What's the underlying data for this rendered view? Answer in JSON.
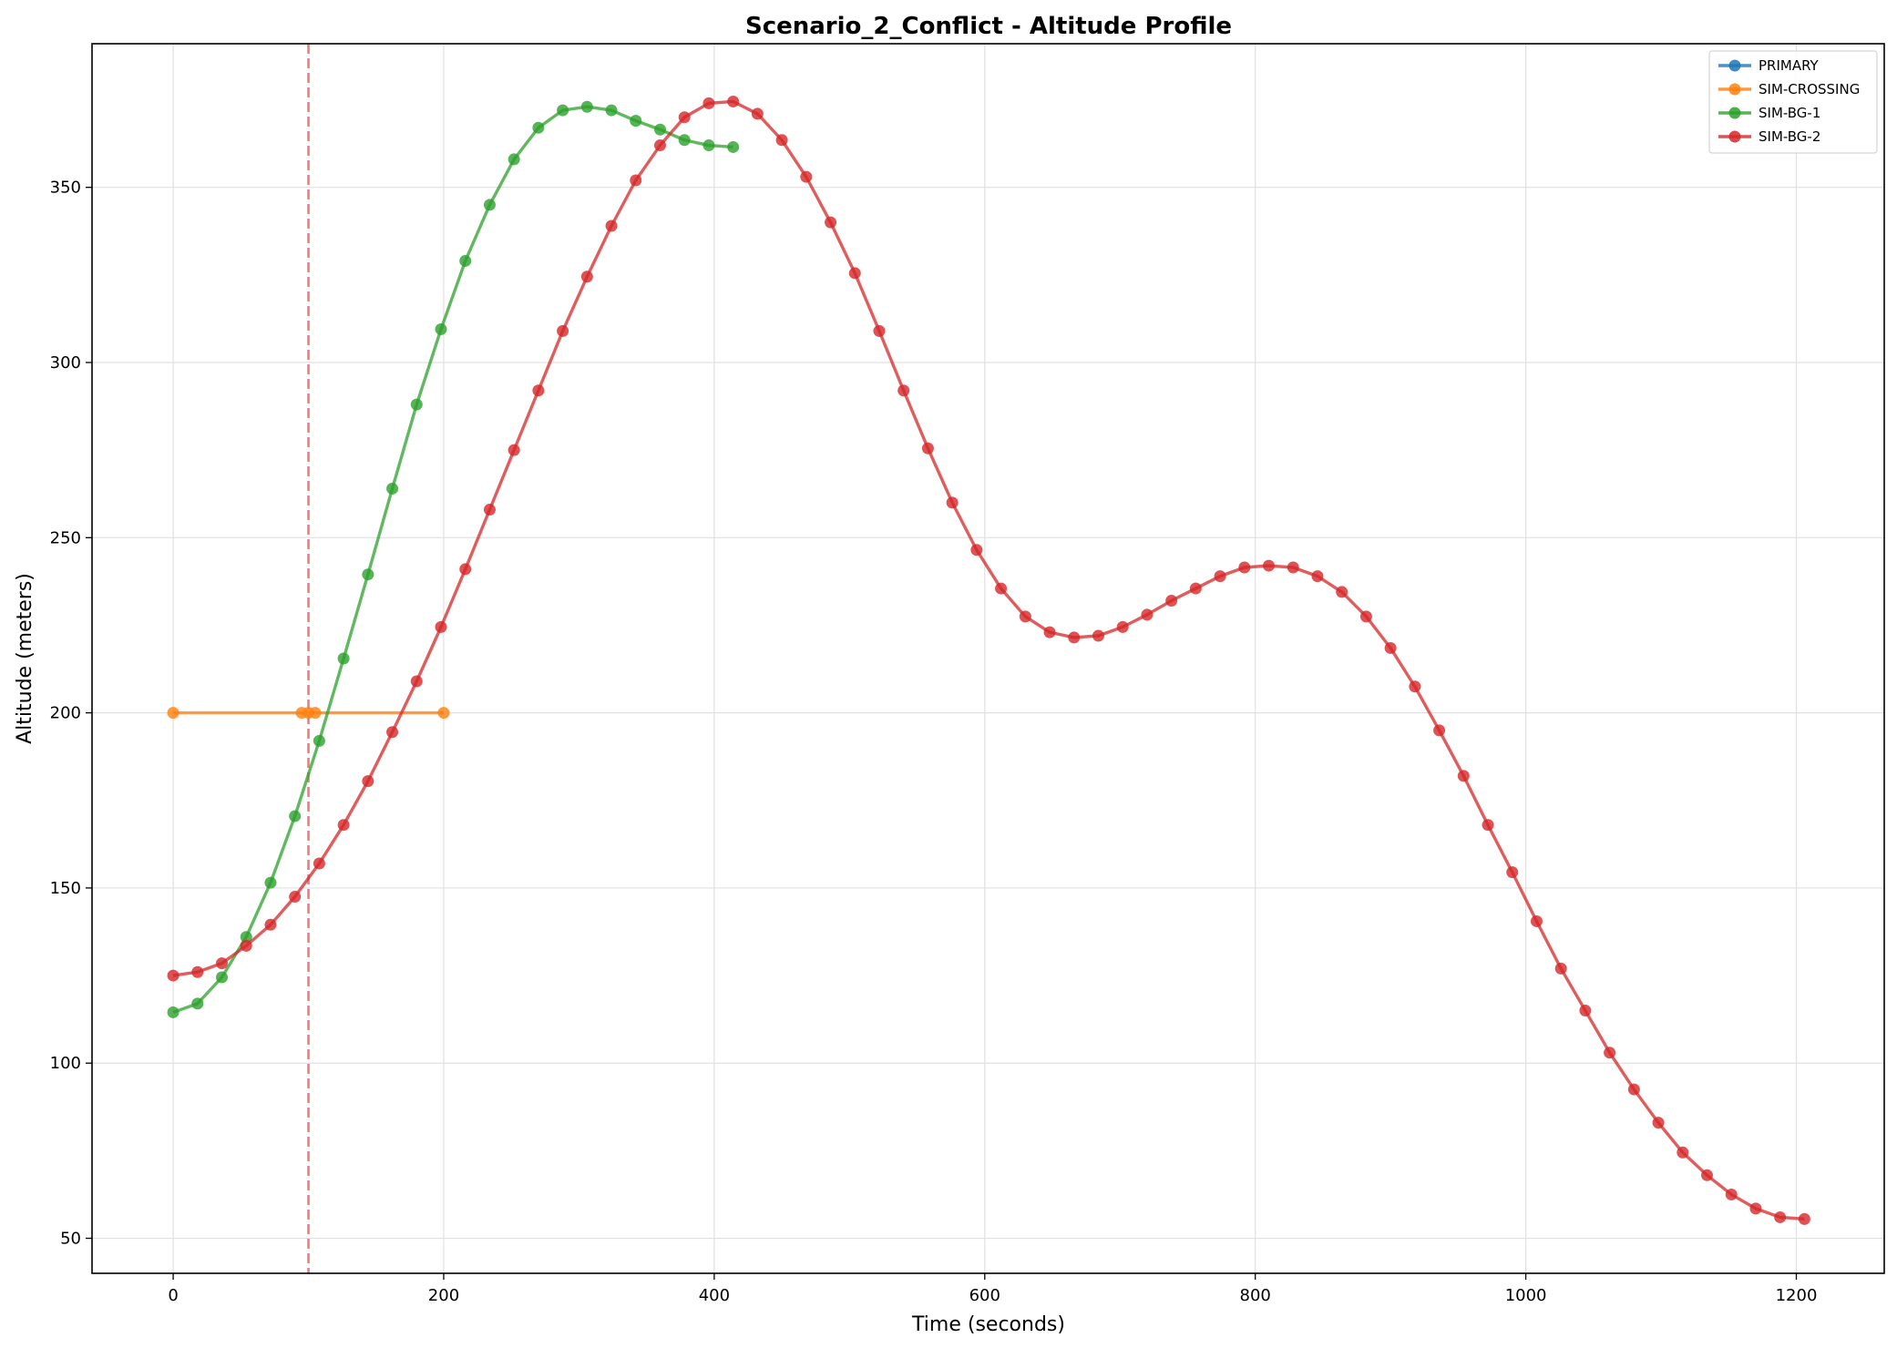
{
  "chart_data": {
    "type": "line",
    "title": "Scenario_2_Conflict - Altitude Profile",
    "xlabel": "Time (seconds)",
    "ylabel": "Altitude (meters)",
    "xlim": [
      -60,
      1265
    ],
    "ylim": [
      40,
      391
    ],
    "x_ticks": [
      0,
      200,
      400,
      600,
      800,
      1000,
      1200
    ],
    "y_ticks": [
      50,
      100,
      150,
      200,
      250,
      300,
      350
    ],
    "grid": true,
    "legend_position": "top-right",
    "vline": {
      "x": 100,
      "color": "#f26b6b",
      "style": "dashed"
    },
    "series": [
      {
        "name": "PRIMARY",
        "color": "#1f77b4",
        "x": [],
        "y": []
      },
      {
        "name": "SIM-CROSSING",
        "color": "#ff7f0e",
        "x": [
          0,
          95,
          100,
          105,
          200
        ],
        "y": [
          200,
          200,
          200,
          200,
          200
        ]
      },
      {
        "name": "SIM-BG-1",
        "color": "#2ca02c",
        "x": [
          0,
          18,
          36,
          54,
          72,
          90,
          108,
          126,
          144,
          162,
          180,
          198,
          216,
          234,
          252,
          270,
          288,
          306,
          324,
          342,
          360,
          378,
          396,
          414
        ],
        "y": [
          114.5,
          117,
          124.5,
          136,
          151.5,
          170.5,
          192,
          215.5,
          239.5,
          264,
          288,
          309.5,
          329,
          345,
          358,
          367,
          372,
          373,
          372,
          369,
          366.5,
          363.5,
          362,
          361.5
        ]
      },
      {
        "name": "SIM-BG-2",
        "color": "#d62728",
        "x": [
          0,
          18,
          36,
          54,
          72,
          90,
          108,
          126,
          144,
          162,
          180,
          198,
          216,
          234,
          252,
          270,
          288,
          306,
          324,
          342,
          360,
          378,
          396,
          414,
          432,
          450,
          468,
          486,
          504,
          522,
          540,
          558,
          576,
          594,
          612,
          630,
          648,
          666,
          684,
          702,
          720,
          738,
          756,
          774,
          792,
          810,
          828,
          846,
          864,
          882,
          900,
          918,
          936,
          954,
          972,
          990,
          1008,
          1026,
          1044,
          1062,
          1080,
          1098,
          1116,
          1134,
          1152,
          1170,
          1188,
          1206
        ],
        "y": [
          125,
          126,
          128.5,
          133.5,
          139.5,
          147.5,
          157,
          168,
          180.5,
          194.5,
          209,
          224.5,
          241,
          258,
          275,
          292,
          309,
          324.5,
          339,
          352,
          362,
          370,
          374,
          374.5,
          371,
          363.5,
          353,
          340,
          325.5,
          309,
          292,
          275.5,
          260,
          246.5,
          235.5,
          227.5,
          223,
          221.5,
          222,
          224.5,
          228,
          232,
          235.5,
          239,
          241.5,
          242,
          241.5,
          239,
          234.5,
          227.5,
          218.5,
          207.5,
          195,
          182,
          168,
          154.5,
          140.5,
          127,
          115,
          103,
          92.5,
          83,
          74.5,
          68,
          62.5,
          58.5,
          56,
          55.5
        ]
      }
    ]
  }
}
